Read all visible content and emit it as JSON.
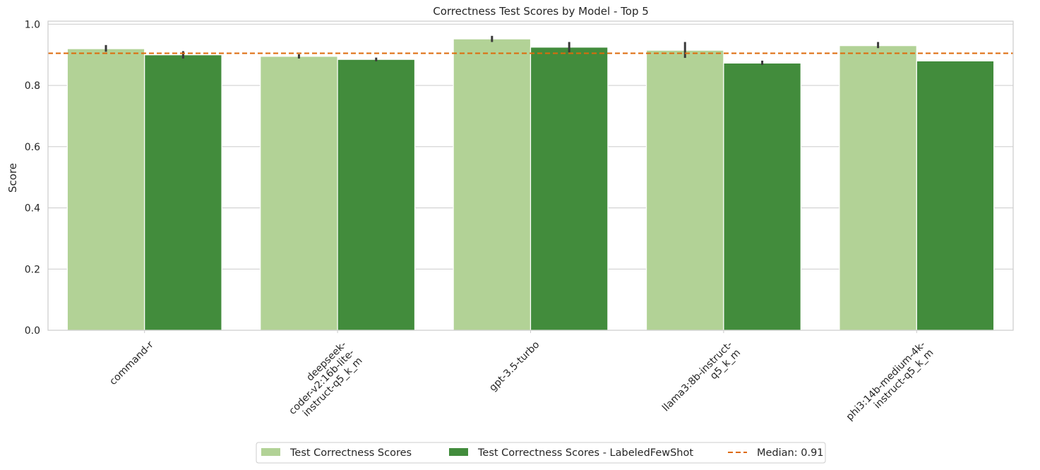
{
  "chart_data": {
    "type": "bar",
    "title": "Correctness Test Scores by Model - Top 5",
    "xlabel": "",
    "ylabel": "Score",
    "ylim": [
      0,
      1.01
    ],
    "yticks": [
      0.0,
      0.2,
      0.4,
      0.6,
      0.8,
      1.0
    ],
    "ytick_labels": [
      "0.0",
      "0.2",
      "0.4",
      "0.6",
      "0.8",
      "1.0"
    ],
    "grid": "horizontal",
    "categories": [
      "command-r",
      "deepseek-coder-v2:16b-lite-instruct-q5_k_m",
      "gpt-3.5-turbo",
      "llama3:8b-instruct-q5_k_m",
      "phi3:14b-medium-4k-instruct-q5_k_m"
    ],
    "category_label_lines": [
      [
        "command-r"
      ],
      [
        "deepseek-",
        "coder-v2:16b-lite-",
        "instruct-q5_k_m"
      ],
      [
        "gpt-3.5-turbo"
      ],
      [
        "llama3:8b-instruct-",
        "q5_k_m"
      ],
      [
        "phi3:14b-medium-4k-",
        "instruct-q5_k_m"
      ]
    ],
    "series": [
      {
        "name": "Test Correctness Scores",
        "color": "#b2d296",
        "values": [
          0.92,
          0.895,
          0.952,
          0.915,
          0.93
        ],
        "error_low": [
          0.91,
          0.888,
          0.942,
          0.89,
          0.922
        ],
        "error_high": [
          0.932,
          0.902,
          0.962,
          0.942,
          0.942
        ]
      },
      {
        "name": "Test Correctness Scores - LabeledFewShot",
        "color": "#428c3c",
        "values": [
          0.9,
          0.885,
          0.925,
          0.873,
          0.88
        ],
        "error_low": [
          0.888,
          0.879,
          0.908,
          0.867,
          0.88
        ],
        "error_high": [
          0.912,
          0.891,
          0.942,
          0.881,
          0.88
        ]
      }
    ],
    "reference_line": {
      "label": "Median: 0.91",
      "value": 0.905,
      "color": "#dd6a0a",
      "style": "dashed"
    },
    "legend_position": "bottom-center"
  }
}
